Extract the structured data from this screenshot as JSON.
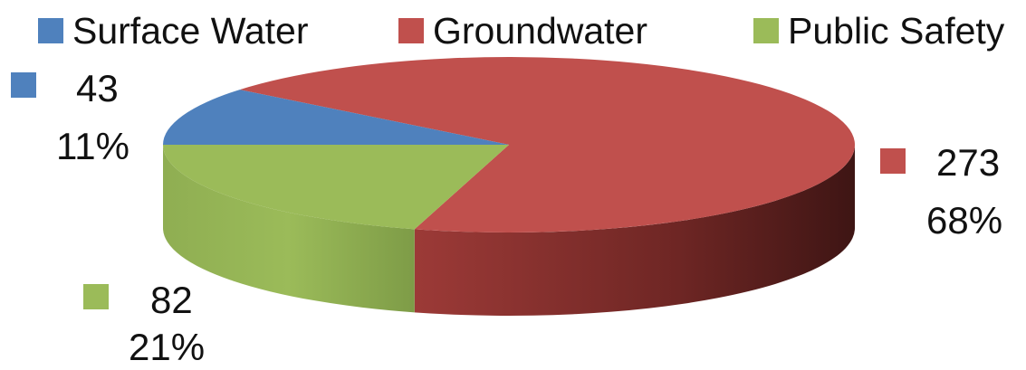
{
  "chart_data": {
    "type": "pie",
    "style": "3d",
    "title": "",
    "legend_position": "top",
    "slices": [
      {
        "name": "Surface Water",
        "value": 43,
        "percent": "11%",
        "color": "#4F81BD"
      },
      {
        "name": "Groundwater",
        "value": 273,
        "percent": "68%",
        "color": "#C0504D"
      },
      {
        "name": "Public Safety",
        "value": 82,
        "percent": "21%",
        "color": "#9BBB59"
      }
    ]
  }
}
